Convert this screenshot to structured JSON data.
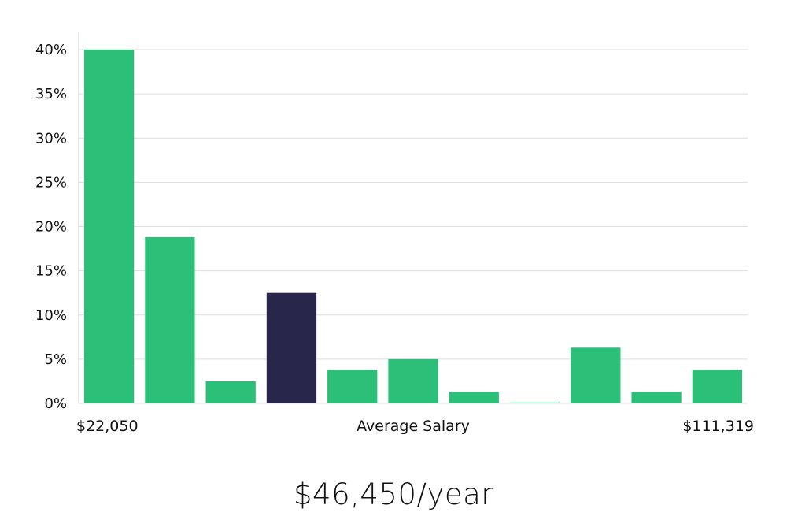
{
  "chart_data": {
    "type": "bar",
    "values": [
      40,
      18.8,
      2.5,
      12.5,
      3.8,
      5,
      1.3,
      0.1,
      6.3,
      1.3,
      3.8
    ],
    "highlight_index": 3,
    "y_ticks": [
      "0%",
      "5%",
      "10%",
      "15%",
      "20%",
      "25%",
      "30%",
      "35%",
      "40%"
    ],
    "ylim": [
      0,
      40
    ],
    "x_min_label": "$22,050",
    "x_max_label": "$111,319",
    "xlabel": "Average Salary",
    "grid": true,
    "colors": {
      "bar": "#2bbf77",
      "highlight": "#28264a",
      "grid": "#dddddd",
      "axis": "#cccccc"
    }
  },
  "summary": {
    "salary": "$46,450/year"
  }
}
